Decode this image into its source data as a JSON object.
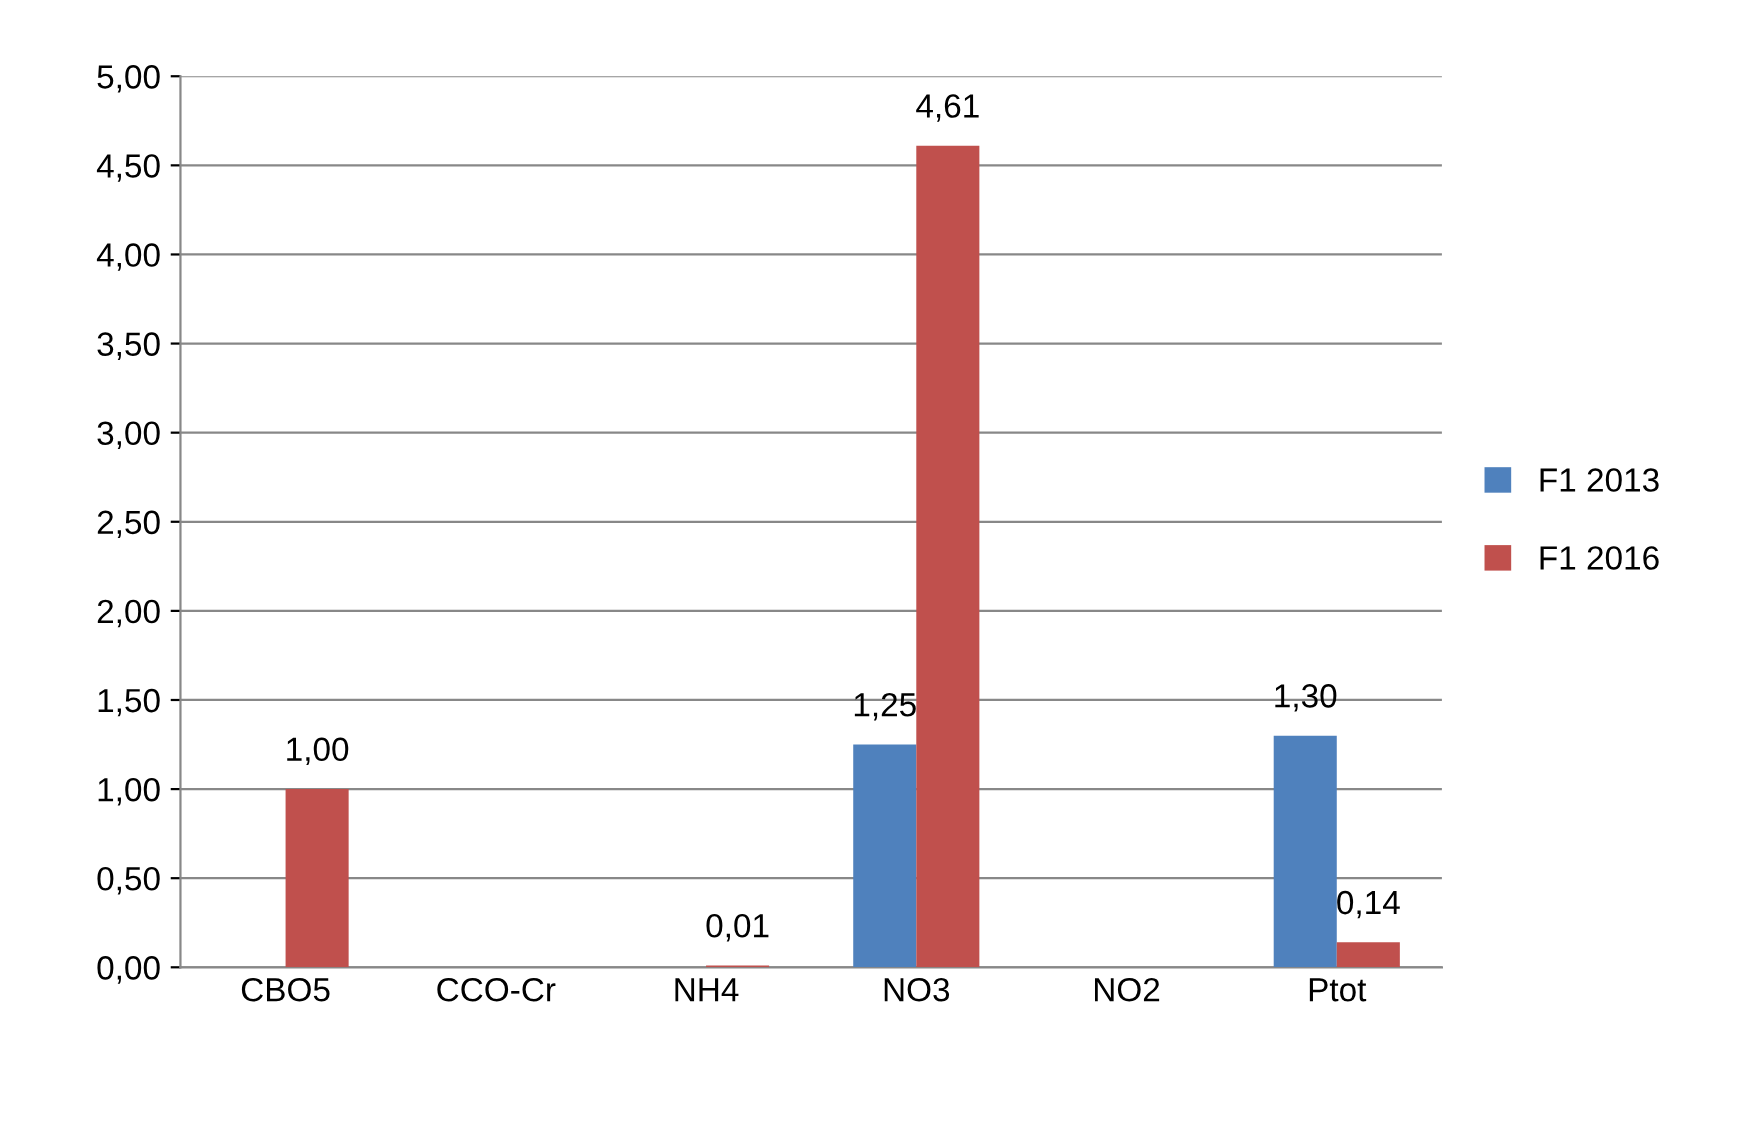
{
  "chart_data": {
    "type": "bar",
    "categories": [
      "CBO5",
      "CCO-Cr",
      "NH4",
      "NO3",
      "NO2",
      "Ptot"
    ],
    "series": [
      {
        "name": "F1 2013",
        "color": "#4f81bd",
        "values": [
          null,
          null,
          null,
          1.25,
          null,
          1.3
        ],
        "value_labels": [
          null,
          null,
          null,
          "1,25",
          null,
          "1,30"
        ]
      },
      {
        "name": "F1 2016",
        "color": "#c0504d",
        "values": [
          1.0,
          null,
          0.01,
          4.61,
          null,
          0.14
        ],
        "value_labels": [
          "1,00",
          null,
          "0,01",
          "4,61",
          null,
          "0,14"
        ]
      }
    ],
    "ylim": [
      0,
      5
    ],
    "yticks": [
      {
        "value": 0,
        "label": "0,00"
      },
      {
        "value": 0.5,
        "label": "0,50"
      },
      {
        "value": 1,
        "label": "1,00"
      },
      {
        "value": 1.5,
        "label": "1,50"
      },
      {
        "value": 2,
        "label": "2,00"
      },
      {
        "value": 2.5,
        "label": "2,50"
      },
      {
        "value": 3,
        "label": "3,00"
      },
      {
        "value": 3.5,
        "label": "3,50"
      },
      {
        "value": 4,
        "label": "4,00"
      },
      {
        "value": 4.5,
        "label": "4,50"
      },
      {
        "value": 5,
        "label": "5,00"
      }
    ],
    "grid": "y",
    "legend": "right"
  }
}
